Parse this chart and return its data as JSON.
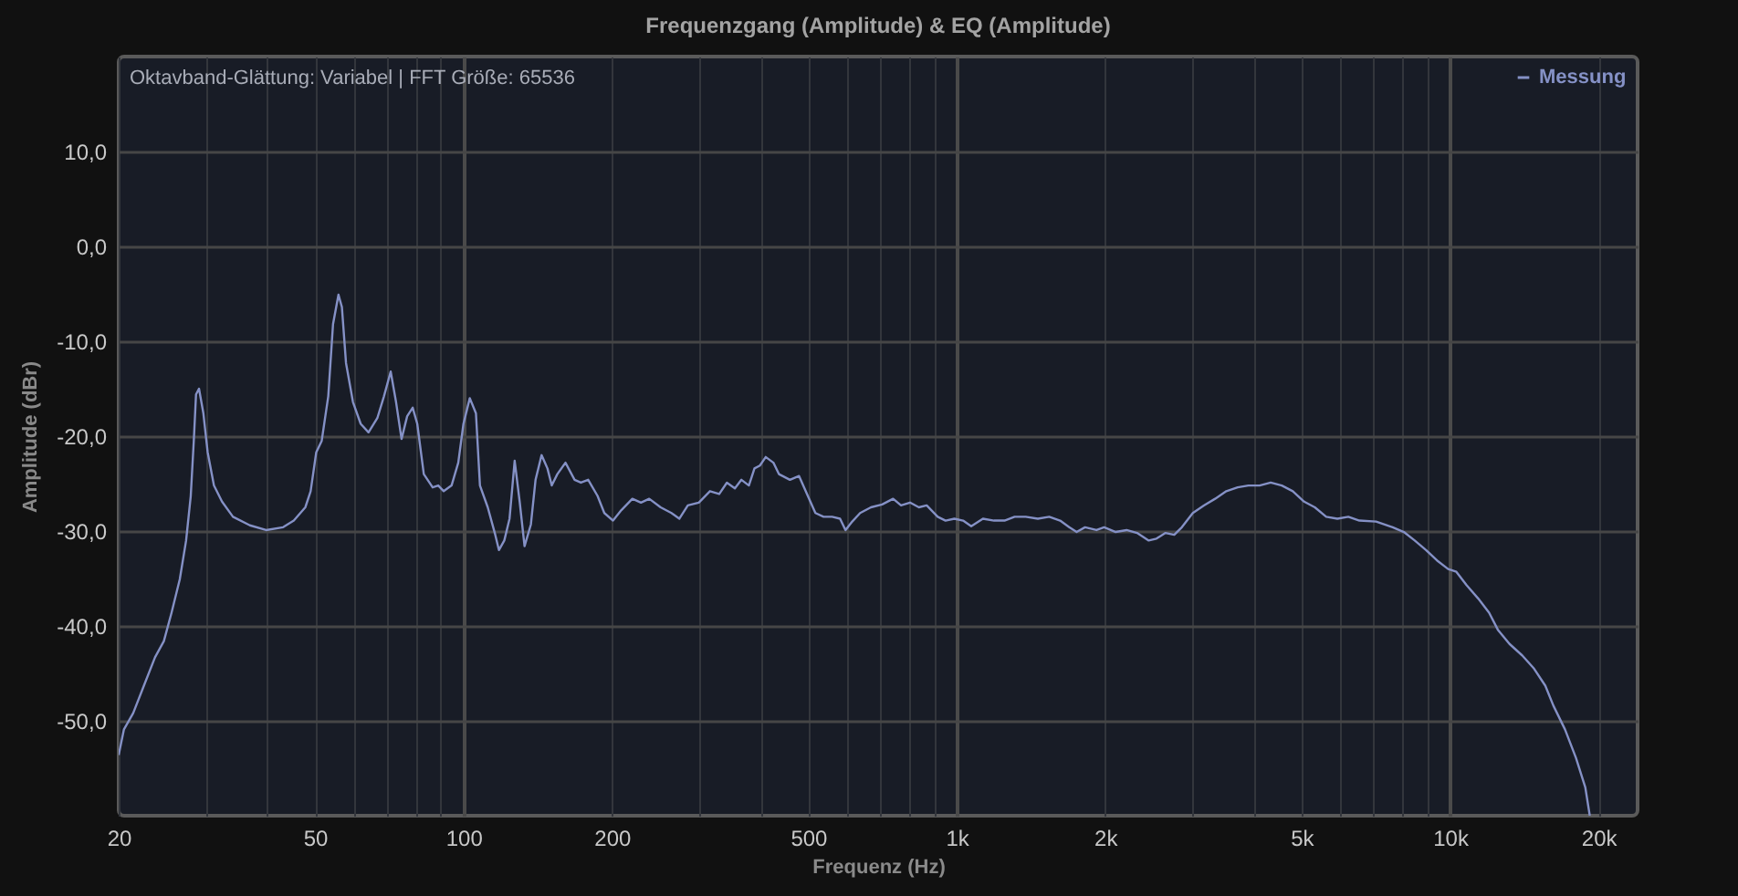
{
  "chart_data": {
    "type": "line",
    "title": "Frequenzgang (Amplitude) & EQ (Amplitude)",
    "xlabel": "Frequenz (Hz)",
    "ylabel": "Amplitude (dBr)",
    "annotations": [
      "Oktavband-Glättung: Variabel | FFT Größe: 65536"
    ],
    "log": "x",
    "grid": true,
    "legend": "top right",
    "line_style": "solid",
    "xlim": [
      20,
      24000
    ],
    "xticks": [
      20,
      {
        "value": 30,
        "label": null
      },
      {
        "value": 40,
        "label": null
      },
      50,
      {
        "value": 60,
        "label": null
      },
      {
        "value": 70,
        "label": null
      },
      {
        "value": 80,
        "label": null
      },
      {
        "value": 90,
        "label": null
      },
      100,
      200,
      {
        "value": 300,
        "label": null
      },
      {
        "value": 400,
        "label": null
      },
      500,
      {
        "value": 600,
        "label": null
      },
      {
        "value": 700,
        "label": null
      },
      {
        "value": 800,
        "label": null
      },
      {
        "value": 900,
        "label": null
      },
      {
        "value": 1000,
        "label": "1k"
      },
      {
        "value": 2000,
        "label": "2k"
      },
      {
        "value": 3000,
        "label": null
      },
      {
        "value": 4000,
        "label": null
      },
      {
        "value": 5000,
        "label": "5k"
      },
      {
        "value": 6000,
        "label": null
      },
      {
        "value": 7000,
        "label": null
      },
      {
        "value": 8000,
        "label": null
      },
      {
        "value": 9000,
        "label": null
      },
      {
        "value": 10000,
        "label": "10k"
      },
      {
        "value": 20000,
        "label": "20k"
      }
    ],
    "ylim": [
      -60,
      20
    ],
    "yticks": [
      {
        "value": -50,
        "label": "-50,0"
      },
      {
        "value": -40,
        "label": "-40,0"
      },
      {
        "value": -30,
        "label": "-30,0"
      },
      {
        "value": -20,
        "label": "-20,0"
      },
      {
        "value": -10,
        "label": "-10,0"
      },
      {
        "value": 0,
        "label": "0,0"
      },
      {
        "value": 10,
        "label": "10,0"
      }
    ],
    "x": [
      20,
      20.5,
      21.4,
      22.5,
      23.7,
      24.7,
      25.6,
      26.6,
      27.4,
      28.0,
      28.4,
      28.7,
      29.1,
      29.7,
      30.3,
      31.2,
      32.4,
      34.1,
      36.9,
      39.8,
      43.1,
      45.3,
      47.8,
      49.0,
      50.3,
      51.6,
      53.2,
      54.4,
      55.8,
      56.7,
      57.8,
      59.7,
      61.9,
      64.2,
      66.9,
      69.0,
      71.2,
      73.0,
      74.9,
      76.9,
      78.9,
      80.6,
      83.1,
      86.6,
      88.9,
      91.2,
      94.6,
      97.6,
      100,
      103,
      106,
      108,
      112,
      116,
      118,
      121,
      124,
      127,
      130,
      133,
      137,
      140,
      144,
      148,
      151,
      155,
      161,
      168,
      173,
      179,
      187,
      193,
      201,
      209,
      220,
      229,
      238,
      251,
      264,
      274,
      285,
      300,
      316,
      330,
      342,
      355,
      366,
      379,
      389,
      399,
      410,
      425,
      436,
      459,
      479,
      499,
      517,
      537,
      559,
      580,
      595,
      614,
      637,
      670,
      706,
      743,
      771,
      804,
      838,
      869,
      915,
      949,
      989,
      1030,
      1070,
      1130,
      1190,
      1250,
      1310,
      1380,
      1460,
      1540,
      1620,
      1690,
      1750,
      1820,
      1920,
      1990,
      2100,
      2210,
      2320,
      2450,
      2540,
      2650,
      2760,
      2860,
      3010,
      3170,
      3340,
      3520,
      3710,
      3900,
      4110,
      4330,
      4560,
      4800,
      5060,
      5320,
      5610,
      5910,
      6220,
      6550,
      7080,
      7650,
      8060,
      8480,
      8940,
      9410,
      9910,
      10300,
      10800,
      11400,
      12000,
      12500,
      13200,
      14000,
      14800,
      15600,
      16200,
      17100,
      18000,
      18800,
      19200
    ],
    "series": [
      {
        "name": "Messung",
        "color": "#8591c6",
        "values": [
          -53.6,
          -50.9,
          -49.2,
          -46.3,
          -43.3,
          -41.6,
          -38.6,
          -35.1,
          -31.0,
          -26.3,
          -20.5,
          -15.6,
          -15.0,
          -17.6,
          -21.7,
          -25.2,
          -26.9,
          -28.5,
          -29.4,
          -29.9,
          -29.6,
          -28.9,
          -27.5,
          -25.8,
          -21.7,
          -20.5,
          -15.8,
          -8.2,
          -5.1,
          -6.4,
          -12.3,
          -16.4,
          -18.7,
          -19.6,
          -18.1,
          -15.8,
          -13.2,
          -16.4,
          -20.3,
          -17.9,
          -17.0,
          -18.7,
          -24.0,
          -25.4,
          -25.2,
          -25.8,
          -25.2,
          -22.8,
          -18.7,
          -16.0,
          -17.6,
          -25.2,
          -27.5,
          -30.4,
          -32.0,
          -31.0,
          -28.7,
          -22.6,
          -26.9,
          -31.6,
          -29.3,
          -24.6,
          -22.0,
          -23.4,
          -25.2,
          -24.0,
          -22.8,
          -24.6,
          -24.9,
          -24.6,
          -26.3,
          -28.1,
          -28.9,
          -27.8,
          -26.6,
          -27.0,
          -26.6,
          -27.5,
          -28.1,
          -28.7,
          -27.3,
          -27.0,
          -25.8,
          -26.1,
          -24.9,
          -25.5,
          -24.6,
          -25.2,
          -23.4,
          -23.1,
          -22.2,
          -22.8,
          -24.0,
          -24.6,
          -24.2,
          -26.3,
          -28.1,
          -28.5,
          -28.5,
          -28.7,
          -29.9,
          -29.0,
          -28.1,
          -27.5,
          -27.2,
          -26.6,
          -27.3,
          -27.0,
          -27.5,
          -27.3,
          -28.5,
          -28.9,
          -28.7,
          -28.9,
          -29.5,
          -28.7,
          -28.9,
          -28.9,
          -28.5,
          -28.5,
          -28.7,
          -28.5,
          -28.9,
          -29.6,
          -30.1,
          -29.6,
          -29.9,
          -29.6,
          -30.1,
          -29.9,
          -30.2,
          -31.0,
          -30.8,
          -30.2,
          -30.4,
          -29.6,
          -28.1,
          -27.3,
          -26.6,
          -25.8,
          -25.4,
          -25.2,
          -25.2,
          -24.9,
          -25.2,
          -25.8,
          -26.9,
          -27.5,
          -28.5,
          -28.7,
          -28.5,
          -28.9,
          -29.0,
          -29.6,
          -30.1,
          -31.0,
          -32.0,
          -33.1,
          -34.0,
          -34.3,
          -35.7,
          -37.1,
          -38.6,
          -40.4,
          -41.9,
          -43.1,
          -44.5,
          -46.3,
          -48.4,
          -50.9,
          -53.9,
          -57.0,
          -60.0
        ]
      }
    ]
  }
}
